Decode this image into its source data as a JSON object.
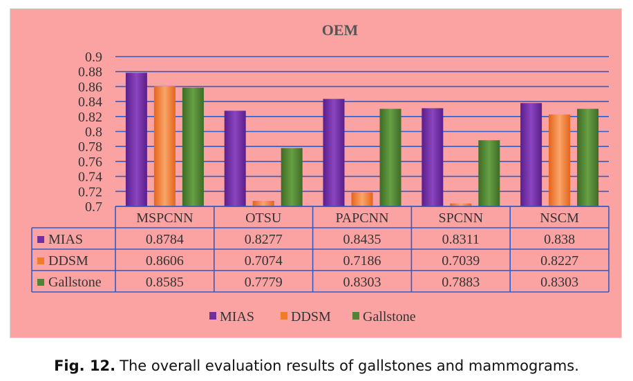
{
  "chart_data": {
    "type": "bar",
    "title": "OEM",
    "categories": [
      "MSPCNN",
      "OTSU",
      "PAPCNN",
      "SPCNN",
      "NSCM"
    ],
    "series": [
      {
        "name": "MIAS",
        "values": [
          0.8784,
          0.8277,
          0.8435,
          0.8311,
          0.838
        ]
      },
      {
        "name": "DDSM",
        "values": [
          0.8606,
          0.7074,
          0.7186,
          0.7039,
          0.8227
        ]
      },
      {
        "name": "Gallstone",
        "values": [
          0.8585,
          0.7779,
          0.8303,
          0.7883,
          0.8303
        ]
      }
    ],
    "table_values": [
      [
        "0.8784",
        "0.8277",
        "0.8435",
        "0.8311",
        "0.838"
      ],
      [
        "0.8606",
        "0.7074",
        "0.7186",
        "0.7039",
        "0.8227"
      ],
      [
        "0.8585",
        "0.7779",
        "0.8303",
        "0.7883",
        "0.8303"
      ]
    ],
    "yticks": [
      "0.9",
      "0.88",
      "0.86",
      "0.84",
      "0.82",
      "0.8",
      "0.78",
      "0.76",
      "0.74",
      "0.72",
      "0.7"
    ],
    "ylim": [
      0.7,
      0.9
    ],
    "xlabel": "",
    "ylabel": "",
    "grid": true,
    "legend": "bottom",
    "colors": {
      "MIAS": "#7030a0",
      "DDSM": "#f07c2a",
      "Gallstone": "#548235",
      "grid": "#2f5bc4",
      "background": "#fba3a3"
    }
  },
  "caption": {
    "label": "Fig. 12.",
    "text": "The overall evaluation results of gallstones and mammograms."
  }
}
